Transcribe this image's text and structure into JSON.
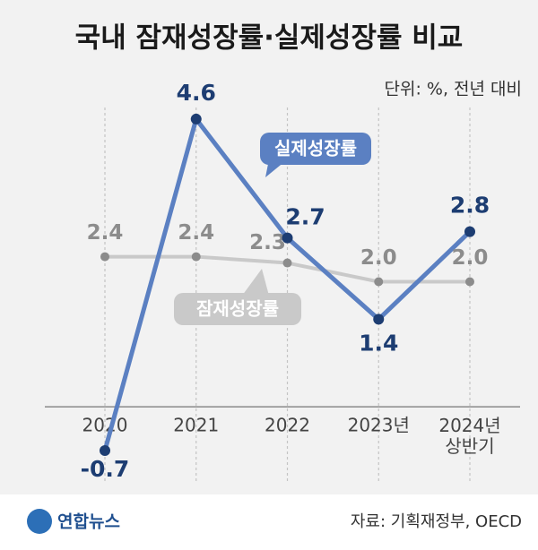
{
  "chart_data": {
    "type": "line",
    "title": "국내 잠재성장률·실제성장률 비교",
    "subtitle": "단위: %, 전년 대비",
    "source": "자료: 기획재정부, OECD",
    "logo": "연합뉴스",
    "categories": [
      "2020",
      "2021",
      "2022",
      "2023년",
      "2024년\n상반기"
    ],
    "series": [
      {
        "name": "실제성장률",
        "color": "#5b80c2",
        "label_color": "#1d3d72",
        "values": [
          -0.7,
          4.6,
          2.7,
          1.4,
          2.8
        ],
        "value_labels": [
          "-0.7",
          "4.6",
          "2.7",
          "1.4",
          "2.8"
        ]
      },
      {
        "name": "잠재성장률",
        "color": "#c9c9c9",
        "label_color": "#8c8c8c",
        "values": [
          2.4,
          2.4,
          2.3,
          2.0,
          2.0
        ],
        "value_labels": [
          "2.4",
          "2.4",
          "2.3",
          "2.0",
          "2.0"
        ]
      }
    ],
    "ylim": [
      -1,
      5
    ]
  }
}
